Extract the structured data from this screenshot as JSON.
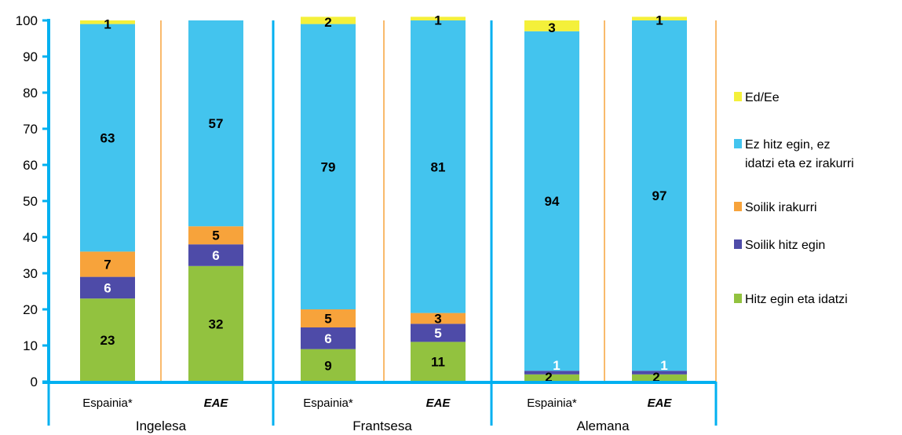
{
  "chart_data": {
    "type": "bar",
    "stacked": true,
    "ylim": [
      0,
      100
    ],
    "yticks": [
      0,
      10,
      20,
      30,
      40,
      50,
      60,
      70,
      80,
      90,
      100
    ],
    "groups": [
      "Ingelesa",
      "Frantsesa",
      "Alemana"
    ],
    "categories": [
      "Espainia*",
      "EAE",
      "Espainia*",
      "EAE",
      "Espainia*",
      "EAE"
    ],
    "category_group": [
      0,
      0,
      1,
      1,
      2,
      2
    ],
    "emphasized_categories": [
      false,
      true,
      false,
      true,
      false,
      true
    ],
    "series": [
      {
        "name": "Hitz egin eta idatzi",
        "color": "#92C23F",
        "label_color": "#000000",
        "values": [
          23,
          32,
          9,
          11,
          2,
          2
        ]
      },
      {
        "name": "Soilik hitz egin",
        "color": "#4E4BA8",
        "label_color": "#FFFFFF",
        "values": [
          6,
          6,
          6,
          5,
          1,
          1
        ]
      },
      {
        "name": "Soilik irakurri",
        "color": "#F7A33B",
        "label_color": "#000000",
        "values": [
          7,
          5,
          5,
          3,
          0,
          0
        ]
      },
      {
        "name": "Ez hitz egin, ez idatzi eta ez irakurri",
        "color": "#43C4EE",
        "label_color": "#000000",
        "values": [
          63,
          57,
          79,
          81,
          94,
          97
        ]
      },
      {
        "name": "Ed/Ee",
        "color": "#F4F03A",
        "label_color": "#000000",
        "values": [
          1,
          0,
          2,
          1,
          3,
          1
        ]
      }
    ],
    "legend": {
      "position": "right",
      "order": [
        4,
        3,
        2,
        1,
        0
      ],
      "lines": [
        [
          "Ed/Ee"
        ],
        [
          "Ez hitz egin, ez",
          "idatzi eta ez irakurri"
        ],
        [
          "Soilik irakurri"
        ],
        [
          "Soilik hitz egin"
        ],
        [
          "Hitz egin eta idatzi"
        ]
      ]
    },
    "colors": {
      "axis": "#00B0F0",
      "separator": "#F7A33B"
    }
  }
}
